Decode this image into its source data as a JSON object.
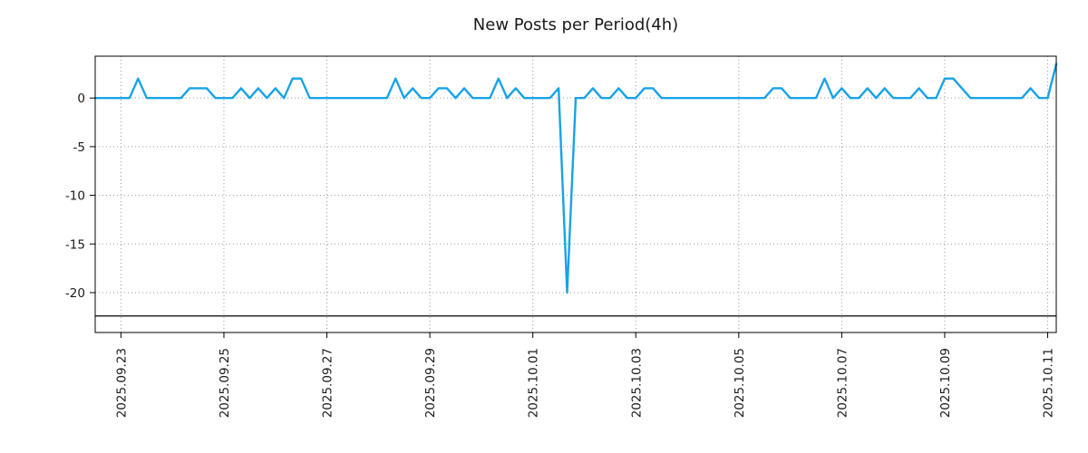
{
  "chart_data": {
    "type": "line",
    "title": "New Posts per Period(4h)",
    "series_name": "new-posts-per-4h",
    "line_color": "#17a3e8",
    "baseline_color": "#000000",
    "grid_color": "#9a9a9a",
    "grid": true,
    "legend": "none",
    "ylim": [
      -24.1,
      4.3
    ],
    "yticks": [
      0,
      -5,
      -10,
      -15,
      -20
    ],
    "baseline": -22.4,
    "period_hours": 4,
    "xticks": [
      {
        "label": "2025.09.23",
        "index": 3
      },
      {
        "label": "2025.09.25",
        "index": 15
      },
      {
        "label": "2025.09.27",
        "index": 27
      },
      {
        "label": "2025.09.29",
        "index": 39
      },
      {
        "label": "2025.10.01",
        "index": 51
      },
      {
        "label": "2025.10.03",
        "index": 63
      },
      {
        "label": "2025.10.05",
        "index": 75
      },
      {
        "label": "2025.10.07",
        "index": 87
      },
      {
        "label": "2025.10.09",
        "index": 99
      },
      {
        "label": "2025.10.11",
        "index": 111
      }
    ],
    "values": [
      0,
      0,
      0,
      0,
      0,
      2,
      0,
      0,
      0,
      0,
      0,
      1,
      1,
      1,
      0,
      0,
      0,
      1,
      0,
      1,
      0,
      1,
      0,
      2,
      2,
      0,
      0,
      0,
      0,
      0,
      0,
      0,
      0,
      0,
      0,
      2,
      0,
      1,
      0,
      0,
      1,
      1,
      0,
      1,
      0,
      0,
      0,
      2,
      0,
      1,
      0,
      0,
      0,
      0,
      1,
      -20,
      0,
      0,
      1,
      0,
      0,
      1,
      0,
      0,
      1,
      1,
      0,
      0,
      0,
      0,
      0,
      0,
      0,
      0,
      0,
      0,
      0,
      0,
      0,
      1,
      1,
      0,
      0,
      0,
      0,
      2,
      0,
      1,
      0,
      0,
      1,
      0,
      1,
      0,
      0,
      0,
      1,
      0,
      0,
      2,
      2,
      1,
      0,
      0,
      0,
      0,
      0,
      0,
      0,
      1,
      0,
      0,
      3.5
    ]
  }
}
